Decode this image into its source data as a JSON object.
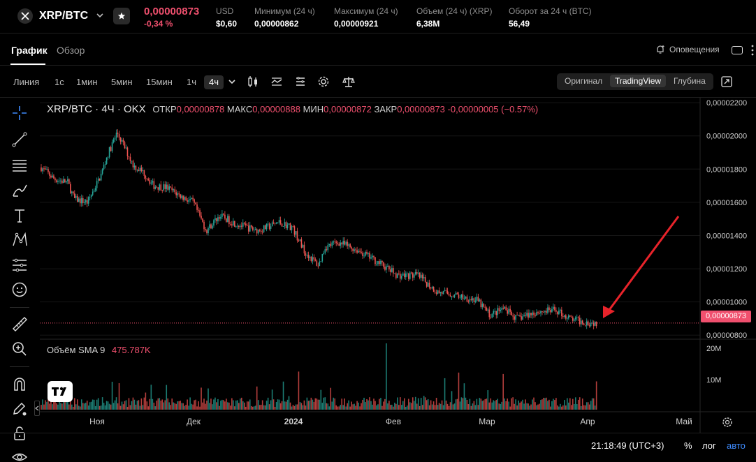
{
  "ticker": {
    "pair": "XRP/BTC",
    "last_price": "0,00000873",
    "change": "-0,34 %",
    "stats": [
      {
        "label": "USD",
        "value": "$0,60"
      },
      {
        "label": "Минимум (24 ч)",
        "value": "0,00000862"
      },
      {
        "label": "Максимум (24 ч)",
        "value": "0,00000921"
      },
      {
        "label": "Объем (24 ч) (XRP)",
        "value": "6,38M"
      },
      {
        "label": "Оборот за 24 ч (BTC)",
        "value": "56,49"
      }
    ]
  },
  "tabs": [
    {
      "label": "График",
      "active": true
    },
    {
      "label": "Обзор",
      "active": false
    }
  ],
  "alerts_label": "Оповещения",
  "toolbar": {
    "timeframes": [
      "Линия",
      "1с",
      "1мин",
      "5мин",
      "15мин",
      "1ч",
      "4ч"
    ],
    "active_timeframe": "4ч",
    "tool_icons": [
      "candles-icon",
      "indicators-icon",
      "templates-icon",
      "settings-icon",
      "compare-icon"
    ],
    "views": [
      {
        "label": "Оригинал",
        "active": false
      },
      {
        "label": "TradingView",
        "active": true
      },
      {
        "label": "Глубина",
        "active": false
      }
    ]
  },
  "legend": {
    "symbol": "XRP/BTC · 4Ч · OKX",
    "open_label": "ОТКР",
    "open": "0,00000878",
    "high_label": "МАКС",
    "high": "0,00000888",
    "low_label": "МИН",
    "low": "0,00000872",
    "close_label": "ЗАКР",
    "close": "0,00000873",
    "delta": "-0,00000005 (−0.57%)"
  },
  "volume_legend": {
    "label": "Объём",
    "indicator": "SMA 9",
    "value": "475.787K"
  },
  "current_price_tag": "0,00000873",
  "status_bar": {
    "time": "21:18:49 (UTC+3)",
    "percent": "%",
    "log": "лог",
    "auto": "авто"
  },
  "colors": {
    "up": "#26a69a",
    "down": "#ef5350",
    "accent_red": "#f0506e",
    "annotation_arrow": "#e8232a",
    "link_blue": "#3f8cff"
  },
  "chart_data": {
    "type": "candlestick",
    "interval": "4ч",
    "x_ticks": [
      "Ноя",
      "Дек",
      "2024",
      "Фев",
      "Мар",
      "Апр",
      "Май"
    ],
    "y_ticks": [
      "0,00002200",
      "0,00002000",
      "0,00001800",
      "0,00001600",
      "0,00001400",
      "0,00001200",
      "0,00001000",
      "0,00000800"
    ],
    "y_range": [
      7.8e-06,
      2.23e-05
    ],
    "current_price": 8.73e-06,
    "volume_ticks": [
      "20M",
      "10M"
    ],
    "price_path": [
      {
        "t": 0.0,
        "p": 1.81e-05
      },
      {
        "t": 0.02,
        "p": 1.74e-05
      },
      {
        "t": 0.04,
        "p": 1.72e-05
      },
      {
        "t": 0.05,
        "p": 1.62e-05
      },
      {
        "t": 0.07,
        "p": 1.6e-05
      },
      {
        "t": 0.09,
        "p": 1.76e-05
      },
      {
        "t": 0.1,
        "p": 1.88e-05
      },
      {
        "t": 0.115,
        "p": 2.02e-05
      },
      {
        "t": 0.13,
        "p": 1.9e-05
      },
      {
        "t": 0.14,
        "p": 1.82e-05
      },
      {
        "t": 0.155,
        "p": 1.78e-05
      },
      {
        "t": 0.17,
        "p": 1.7e-05
      },
      {
        "t": 0.19,
        "p": 1.69e-05
      },
      {
        "t": 0.21,
        "p": 1.64e-05
      },
      {
        "t": 0.23,
        "p": 1.6e-05
      },
      {
        "t": 0.25,
        "p": 1.43e-05
      },
      {
        "t": 0.27,
        "p": 1.52e-05
      },
      {
        "t": 0.29,
        "p": 1.48e-05
      },
      {
        "t": 0.31,
        "p": 1.45e-05
      },
      {
        "t": 0.33,
        "p": 1.43e-05
      },
      {
        "t": 0.36,
        "p": 1.48e-05
      },
      {
        "t": 0.38,
        "p": 1.45e-05
      },
      {
        "t": 0.4,
        "p": 1.3e-05
      },
      {
        "t": 0.42,
        "p": 1.22e-05
      },
      {
        "t": 0.43,
        "p": 1.33e-05
      },
      {
        "t": 0.45,
        "p": 1.36e-05
      },
      {
        "t": 0.48,
        "p": 1.31e-05
      },
      {
        "t": 0.51,
        "p": 1.24e-05
      },
      {
        "t": 0.54,
        "p": 1.16e-05
      },
      {
        "t": 0.57,
        "p": 1.16e-05
      },
      {
        "t": 0.6,
        "p": 1.06e-05
      },
      {
        "t": 0.63,
        "p": 1.04e-05
      },
      {
        "t": 0.66,
        "p": 1.01e-05
      },
      {
        "t": 0.68,
        "p": 9.2e-06
      },
      {
        "t": 0.7,
        "p": 9.6e-06
      },
      {
        "t": 0.72,
        "p": 9e-06
      },
      {
        "t": 0.75,
        "p": 9.4e-06
      },
      {
        "t": 0.78,
        "p": 9.5e-06
      },
      {
        "t": 0.8,
        "p": 9e-06
      },
      {
        "t": 0.82,
        "p": 8.8e-06
      },
      {
        "t": 0.843,
        "p": 8.73e-06
      }
    ]
  }
}
